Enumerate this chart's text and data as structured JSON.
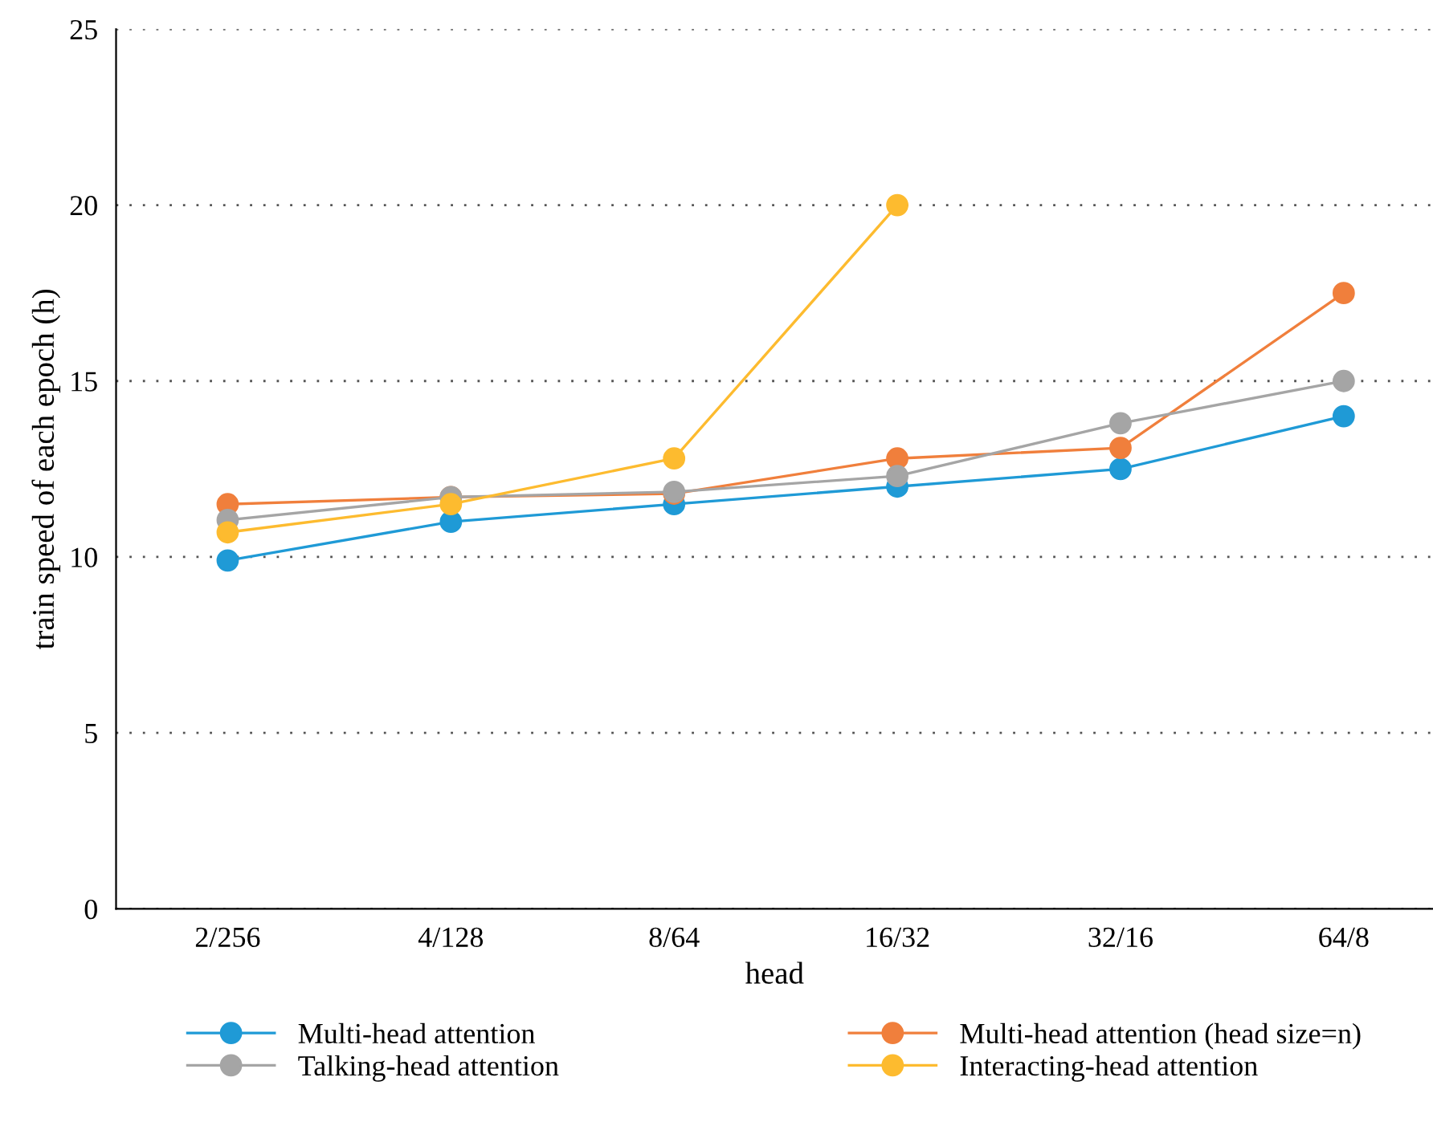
{
  "chart_data": {
    "type": "line",
    "xlabel": "head",
    "ylabel": "train speed of each epoch (h)",
    "categories": [
      "2/256",
      "4/128",
      "8/64",
      "16/32",
      "32/16",
      "64/8"
    ],
    "series": [
      {
        "name": "Multi-head attention",
        "color": "#1f9ad6",
        "values": [
          9.9,
          11.0,
          11.5,
          12.0,
          12.5,
          14.0
        ]
      },
      {
        "name": "Multi-head attention (head size=n)",
        "color": "#f07f3c",
        "values": [
          11.5,
          11.7,
          11.8,
          12.8,
          13.1,
          17.5
        ]
      },
      {
        "name": "Talking-head attention",
        "color": "#a5a5a5",
        "values": [
          11.05,
          11.7,
          11.85,
          12.3,
          13.8,
          15.0
        ]
      },
      {
        "name": "Interacting-head attention",
        "color": "#fdbb2f",
        "values": [
          10.7,
          11.5,
          12.8,
          20.0,
          null,
          null
        ]
      }
    ],
    "ylim": [
      0,
      25
    ],
    "yticks": [
      0,
      5,
      10,
      15,
      20,
      25
    ],
    "grid": "y",
    "legend": "bottom",
    "marker": "circle",
    "line_style": "solid"
  }
}
